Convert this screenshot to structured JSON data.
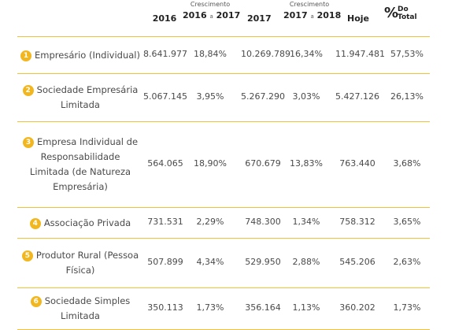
{
  "header": {
    "col_2016": "2016",
    "crescimento_1_small": "Crescimento",
    "crescimento_1_from": "2016",
    "crescimento_1_sep": "a",
    "crescimento_1_to": "2017",
    "col_2017": "2017",
    "crescimento_2_small": "Crescimento",
    "crescimento_2_from": "2017",
    "crescimento_2_sep": "a",
    "crescimento_2_to": "2018",
    "col_hoje": "Hoje",
    "pct_sign": "%",
    "pct_do": "Do",
    "pct_total": "Total"
  },
  "rows": [
    {
      "num": "1",
      "name_lines": [
        "Empresário (Individual)"
      ],
      "v2016": "8.641.977",
      "c1": "18,84%",
      "v2017": "10.269.789",
      "c2": "16,34%",
      "hoje": "11.947.481",
      "pct": "57,53%"
    },
    {
      "num": "2",
      "name_lines": [
        "Sociedade Empresária",
        "Limitada"
      ],
      "v2016": "5.067.145",
      "c1": "3,95%",
      "v2017": "5.267.290",
      "c2": "3,03%",
      "hoje": "5.427.126",
      "pct": "26,13%"
    },
    {
      "num": "3",
      "name_lines": [
        "Empresa Individual de",
        "Responsabilidade",
        "Limitada (de Natureza",
        "Empresária)"
      ],
      "v2016": "564.065",
      "c1": "18,90%",
      "v2017": "670.679",
      "c2": "13,83%",
      "hoje": "763.440",
      "pct": "3,68%"
    },
    {
      "num": "4",
      "name_lines": [
        "Associação Privada"
      ],
      "v2016": "731.531",
      "c1": "2,29%",
      "v2017": "748.300",
      "c2": "1,34%",
      "hoje": "758.312",
      "pct": "3,65%"
    },
    {
      "num": "5",
      "name_lines": [
        "Produtor Rural (Pessoa",
        "Física)"
      ],
      "v2016": "507.899",
      "c1": "4,34%",
      "v2017": "529.950",
      "c2": "2,88%",
      "hoje": "545.206",
      "pct": "2,63%"
    },
    {
      "num": "6",
      "name_lines": [
        "Sociedade Simples",
        "Limitada"
      ],
      "v2016": "350.113",
      "c1": "1,73%",
      "v2017": "356.164",
      "c2": "1,13%",
      "hoje": "360.202",
      "pct": "1,73%"
    }
  ]
}
